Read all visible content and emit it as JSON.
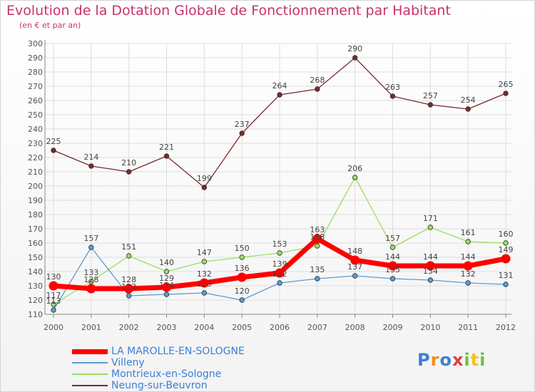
{
  "title": "Evolution de la Dotation Globale de Fonctionnement par Habitant",
  "subtitle": "(en € et par an)",
  "logo_text": "Proxiti",
  "chart_data": {
    "type": "line",
    "categories": [
      "2000",
      "2001",
      "2002",
      "2003",
      "2004",
      "2005",
      "2006",
      "2007",
      "2008",
      "2009",
      "2010",
      "2011",
      "2012"
    ],
    "ylim": [
      110,
      300
    ],
    "yticks": [
      110,
      120,
      130,
      140,
      150,
      160,
      170,
      180,
      190,
      200,
      210,
      220,
      230,
      240,
      250,
      260,
      270,
      280,
      290,
      300
    ],
    "grid": true,
    "legend_position": "bottom-left",
    "series": [
      {
        "name": "LA MAROLLE-EN-SOLOGNE",
        "color": "#ff0000",
        "values": [
          130,
          128,
          128,
          129,
          132,
          136,
          139,
          163,
          148,
          144,
          144,
          144,
          149
        ]
      },
      {
        "name": "Villeny",
        "color": "#5b9bd5",
        "values": [
          113,
          157,
          123,
          124,
          125,
          120,
          132,
          135,
          137,
          135,
          134,
          132,
          131
        ]
      },
      {
        "name": "Montrieux-en-Sologne",
        "color": "#99dd66",
        "values": [
          117,
          133,
          151,
          140,
          147,
          150,
          153,
          158,
          206,
          157,
          171,
          161,
          160
        ]
      },
      {
        "name": "Neung-sur-Beuvron",
        "color": "#7a2a2a",
        "values": [
          225,
          214,
          210,
          221,
          199,
          237,
          264,
          268,
          290,
          263,
          257,
          254,
          265
        ]
      }
    ]
  }
}
